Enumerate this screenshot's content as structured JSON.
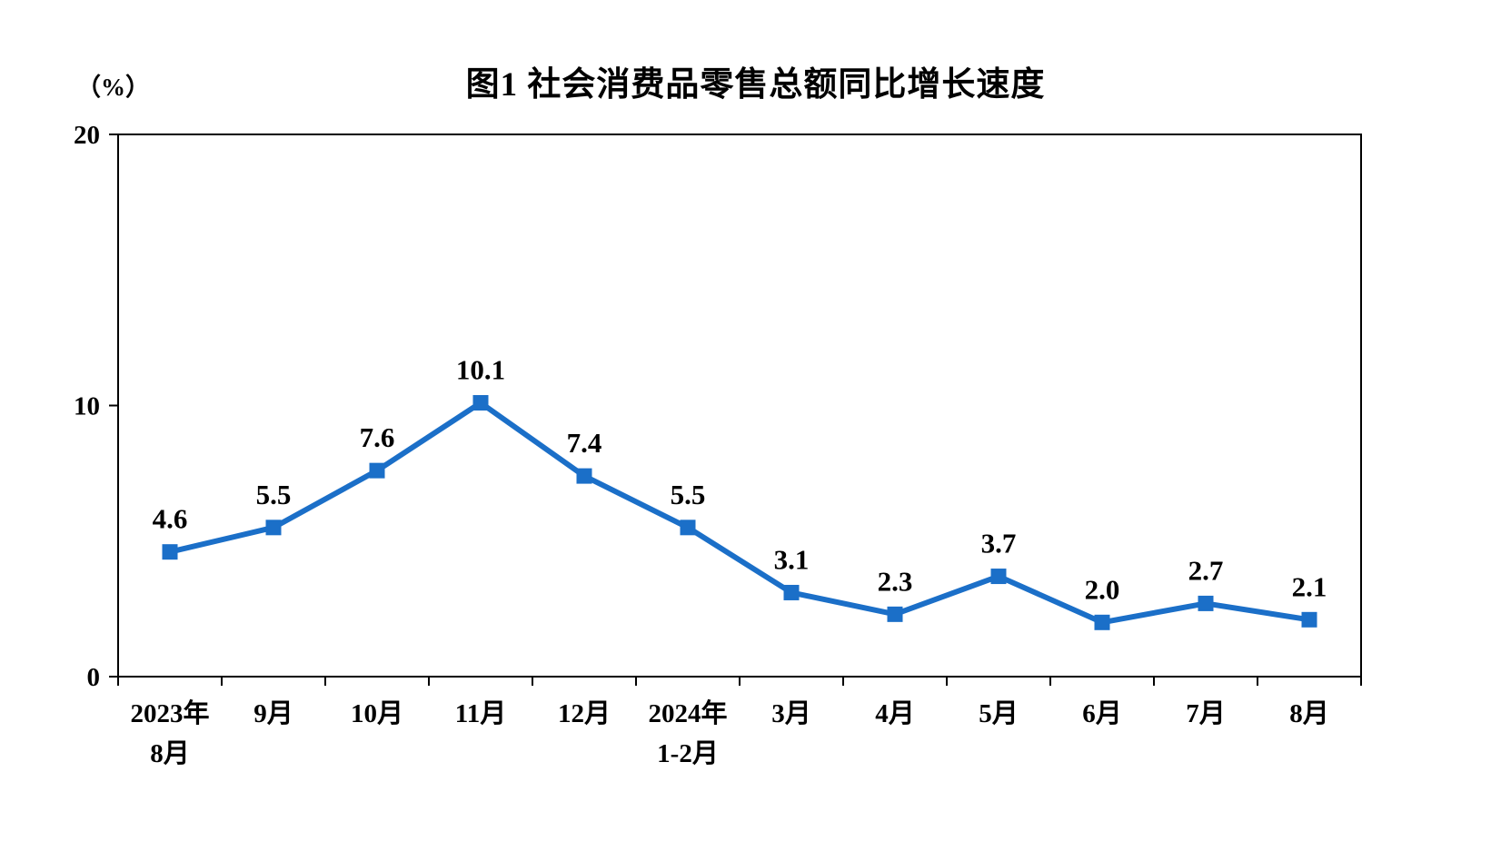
{
  "page": {
    "background": "#ffffff"
  },
  "chart_data": {
    "type": "line",
    "title": "图1 社会消费品零售总额同比增长速度",
    "unit_label": "（%）",
    "categories": [
      "2023年\n8月",
      "9月",
      "10月",
      "11月",
      "12月",
      "2024年\n1-2月",
      "3月",
      "4月",
      "5月",
      "6月",
      "7月",
      "8月"
    ],
    "values": [
      4.6,
      5.5,
      7.6,
      10.1,
      7.4,
      5.5,
      3.1,
      2.3,
      3.7,
      2.0,
      2.7,
      2.1
    ],
    "value_labels": [
      "4.6",
      "5.5",
      "7.6",
      "10.1",
      "7.4",
      "5.5",
      "3.1",
      "2.3",
      "3.7",
      "2.0",
      "2.7",
      "2.1"
    ],
    "ylabel": "",
    "xlabel": "",
    "ylim": [
      0,
      20
    ],
    "yticks": [
      0,
      10,
      20
    ],
    "grid": false,
    "legend": "none",
    "line_color": "#1b6fc8",
    "marker": "square",
    "marker_color": "#1b6fc8",
    "axis_color": "#000000",
    "label_color": "#000000"
  }
}
